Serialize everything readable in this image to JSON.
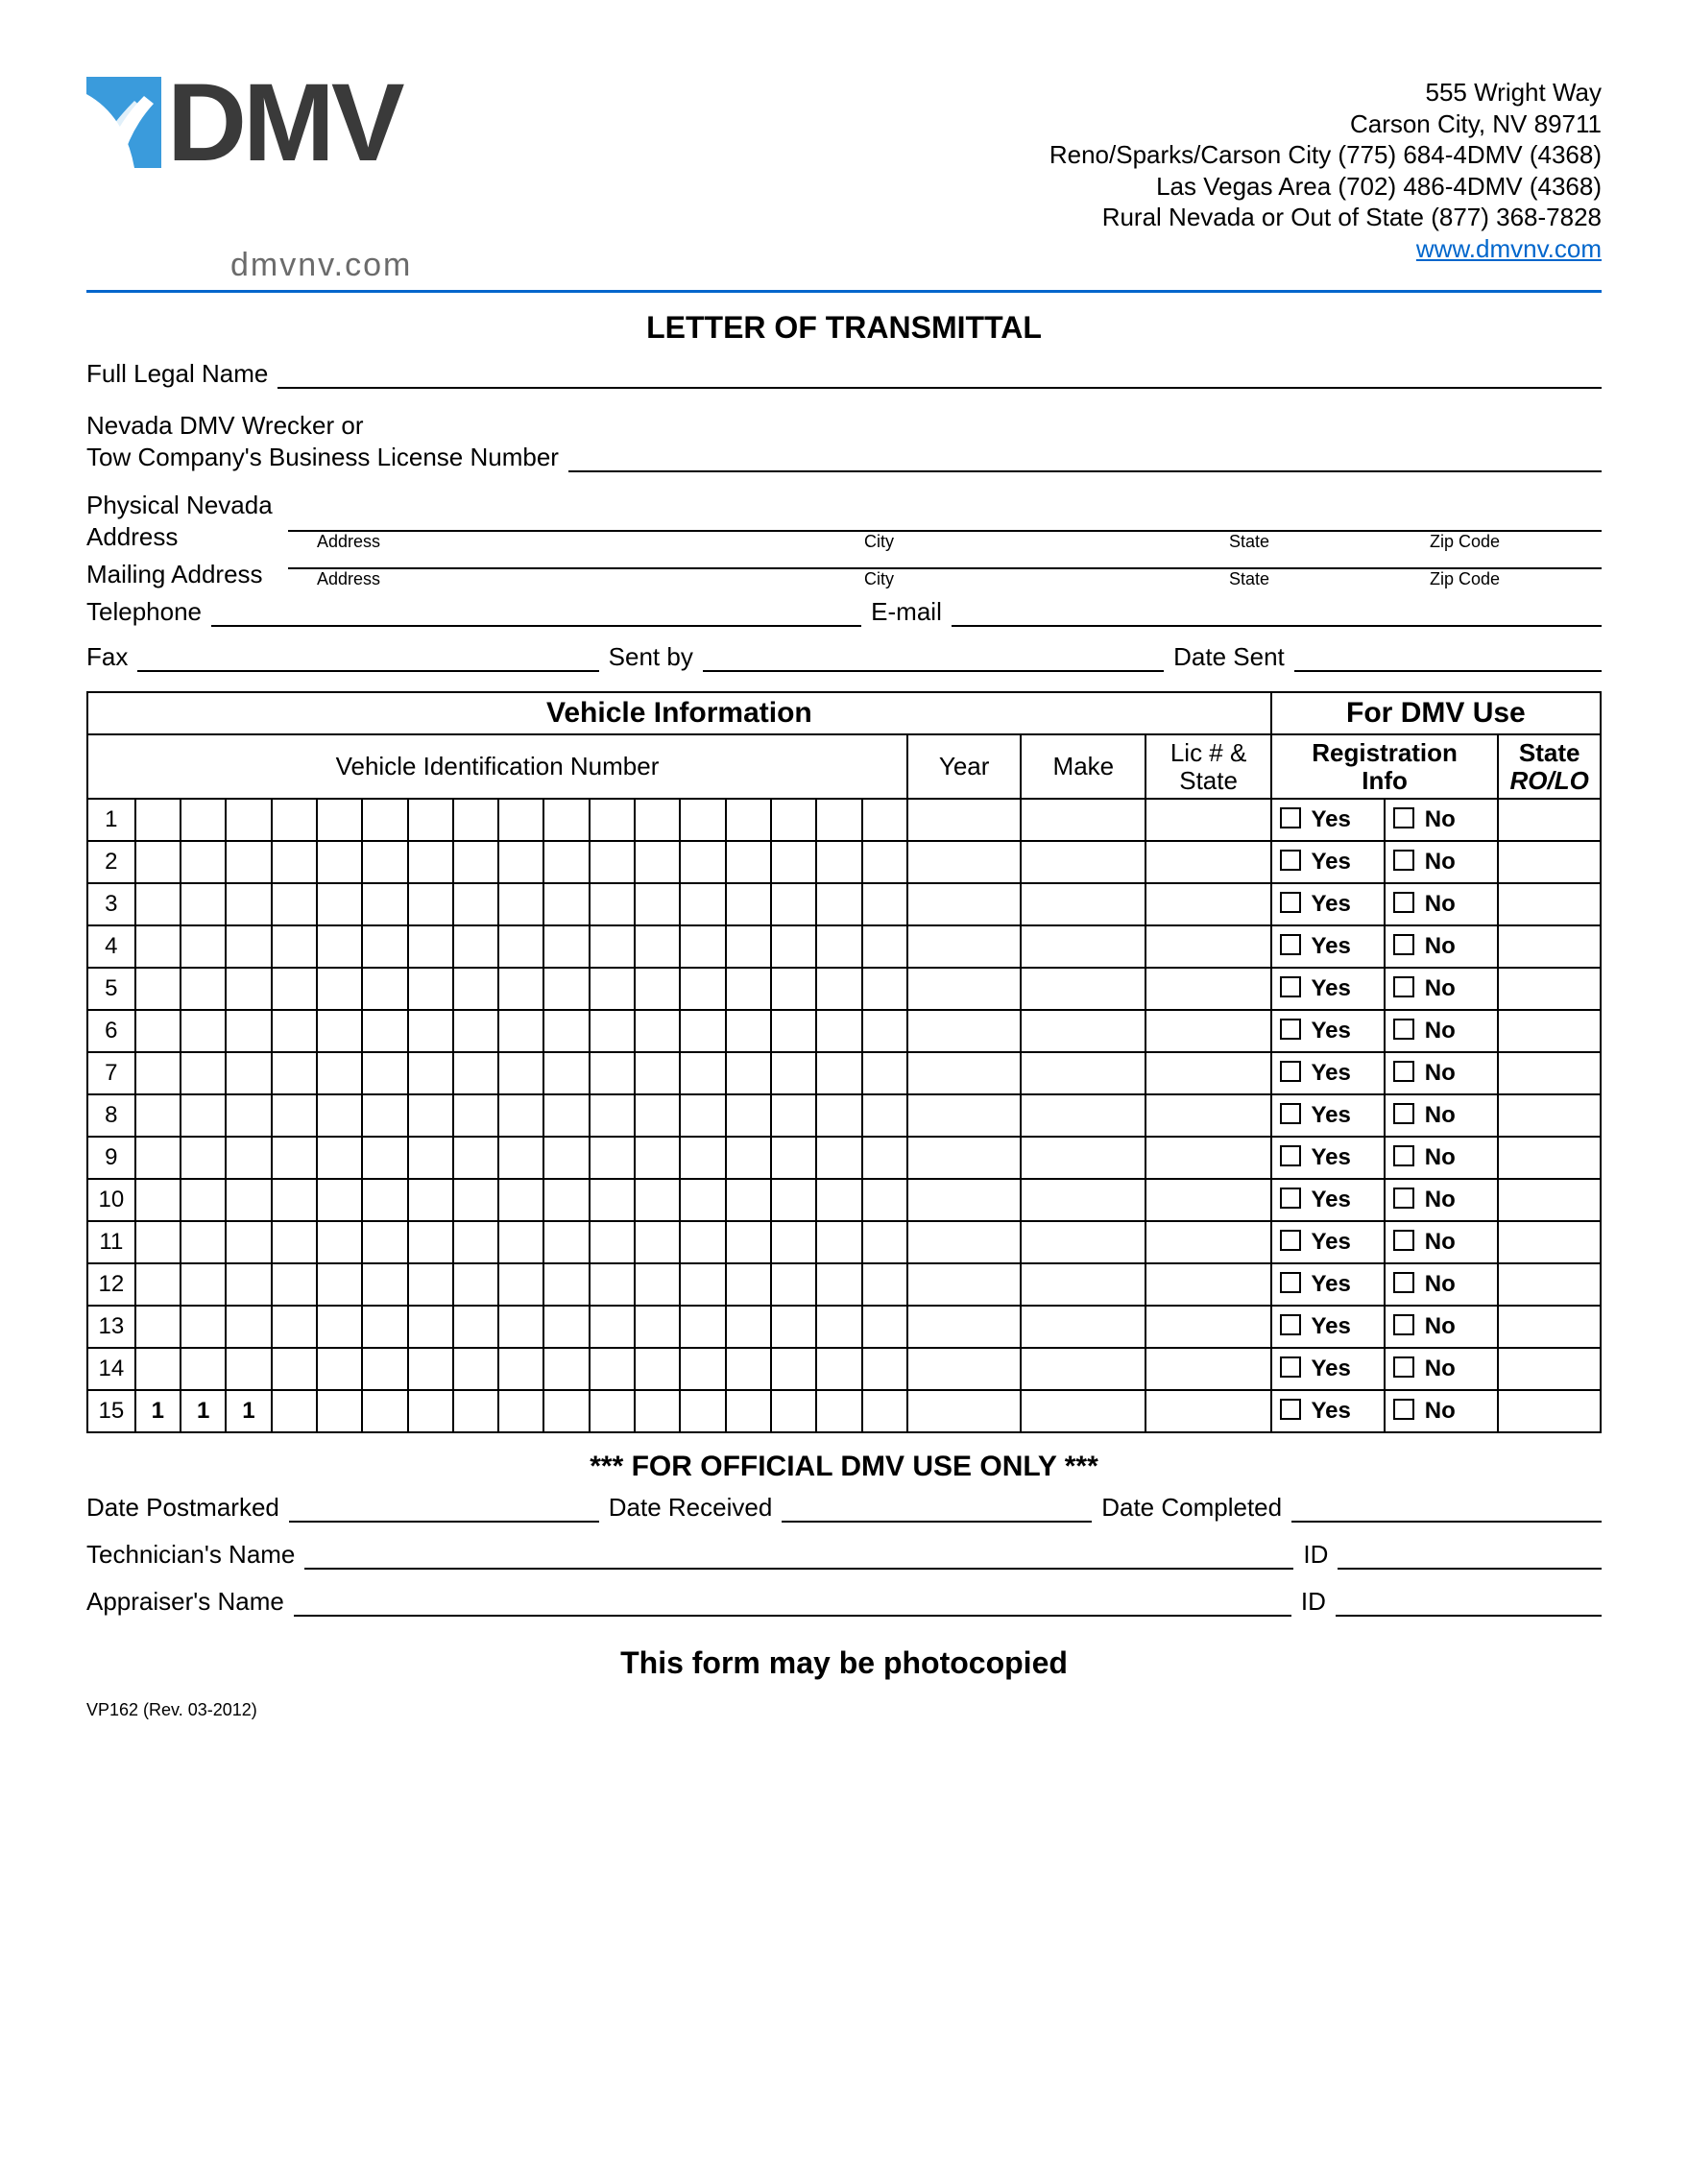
{
  "header": {
    "logo_text": "DMV",
    "logo_url": "dmvnv.com",
    "address": {
      "line1": "555 Wright Way",
      "line2": "Carson City, NV 89711",
      "line3": "Reno/Sparks/Carson City (775) 684-4DMV (4368)",
      "line4": "Las Vegas Area (702) 486-4DMV (4368)",
      "line5": "Rural Nevada or Out of State (877) 368-7828",
      "link": "www.dmvnv.com"
    }
  },
  "title": "LETTER OF TRANSMITTAL",
  "fields": {
    "full_legal_name": "Full Legal Name",
    "wrecker1": "Nevada DMV Wrecker or",
    "wrecker2": "Tow Company's Business License Number",
    "physical1": "Physical Nevada",
    "physical2": "Address",
    "mailing": "Mailing Address",
    "addr_sub_address": "Address",
    "addr_sub_city": "City",
    "addr_sub_state": "State",
    "addr_sub_zip": "Zip Code",
    "telephone": "Telephone",
    "email": "E-mail",
    "fax": "Fax",
    "sent_by": "Sent by",
    "date_sent": "Date Sent"
  },
  "table": {
    "vehicle_info": "Vehicle Information",
    "dmv_use": "For DMV Use",
    "vin": "Vehicle Identification Number",
    "year": "Year",
    "make": "Make",
    "lic1": "Lic # &",
    "lic2": "State",
    "reg1": "Registration",
    "reg2": "Info",
    "state": "State",
    "rolo": "RO/LO",
    "yes": "Yes",
    "no": "No",
    "row_count": 15,
    "vin_cols": 17,
    "prefill_row15": [
      "1",
      "1",
      "1"
    ],
    "colors": {
      "border": "#000000",
      "background": "#ffffff"
    }
  },
  "official": {
    "banner": "*** FOR OFFICIAL  DMV USE ONLY ***",
    "date_postmarked": "Date Postmarked",
    "date_received": "Date Received",
    "date_completed": "Date Completed",
    "tech_name": "Technician's Name",
    "appr_name": "Appraiser's Name",
    "id": "ID"
  },
  "photocopy": "This form may be photocopied",
  "form_id": "VP162 (Rev. 03-2012)"
}
